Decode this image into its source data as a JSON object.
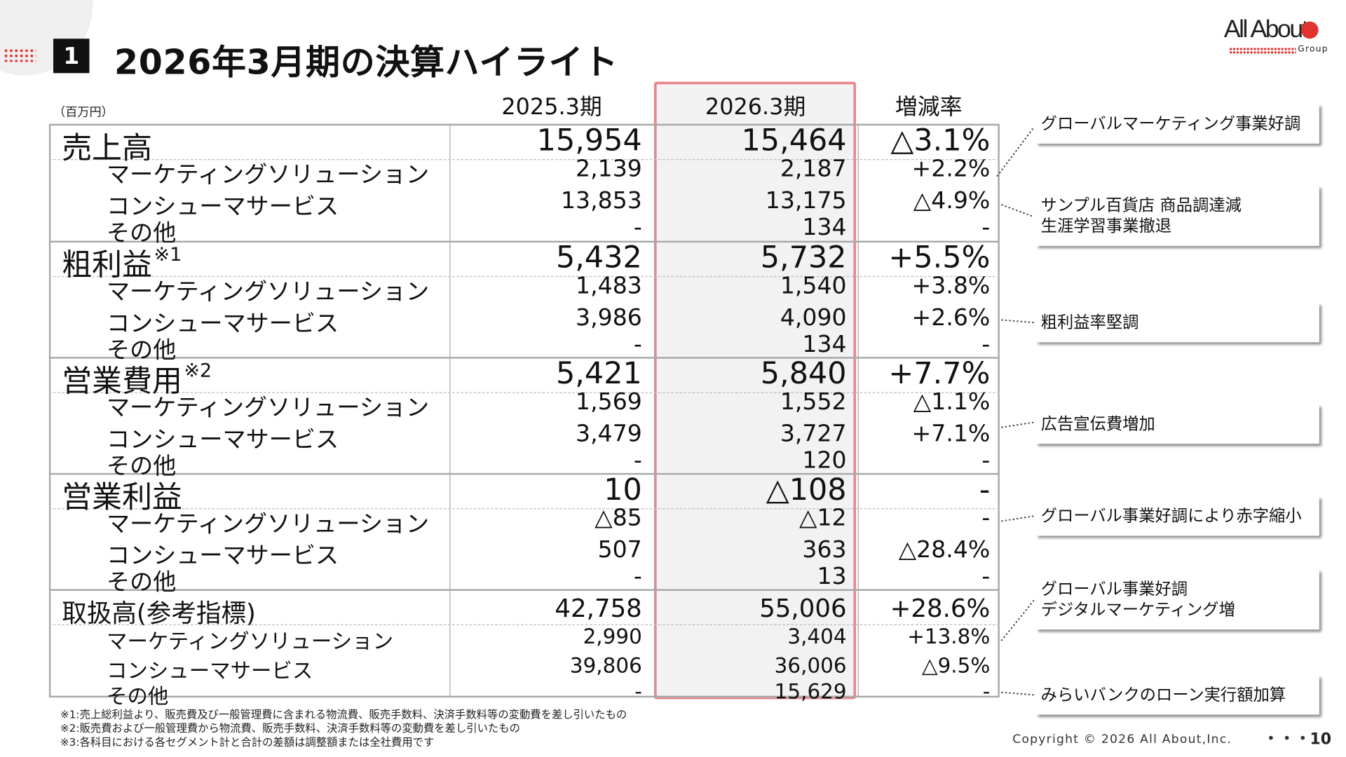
{
  "header": {
    "section_number": "1",
    "title": "2026年3月期の決算ハイライト",
    "logo_text": "All About",
    "logo_sub": "Group",
    "brand_color": "#e0352f"
  },
  "table": {
    "unit": "（百万円）",
    "columns": [
      "2025.3期",
      "2026.3期",
      "増減率"
    ],
    "highlight_color": "#e8868c",
    "groups": [
      {
        "label": "売上高",
        "note": "",
        "values": [
          "15,954",
          "15,464",
          "△3.1%"
        ],
        "rows": [
          {
            "label": "マーケティングソリューション",
            "values": [
              "2,139",
              "2,187",
              "+2.2%"
            ]
          },
          {
            "label": "コンシューマサービス",
            "values": [
              "13,853",
              "13,175",
              "△4.9%"
            ]
          },
          {
            "label": "その他",
            "values": [
              "-",
              "134",
              "-"
            ]
          }
        ]
      },
      {
        "label": "粗利益",
        "note": "※1",
        "values": [
          "5,432",
          "5,732",
          "+5.5%"
        ],
        "rows": [
          {
            "label": "マーケティングソリューション",
            "values": [
              "1,483",
              "1,540",
              "+3.8%"
            ]
          },
          {
            "label": "コンシューマサービス",
            "values": [
              "3,986",
              "4,090",
              "+2.6%"
            ]
          },
          {
            "label": "その他",
            "values": [
              "-",
              "134",
              "-"
            ]
          }
        ]
      },
      {
        "label": "営業費用",
        "note": "※2",
        "values": [
          "5,421",
          "5,840",
          "+7.7%"
        ],
        "rows": [
          {
            "label": "マーケティングソリューション",
            "values": [
              "1,569",
              "1,552",
              "△1.1%"
            ]
          },
          {
            "label": "コンシューマサービス",
            "values": [
              "3,479",
              "3,727",
              "+7.1%"
            ]
          },
          {
            "label": "その他",
            "values": [
              "-",
              "120",
              "-"
            ]
          }
        ]
      },
      {
        "label": "営業利益",
        "note": "",
        "values": [
          "10",
          "△108",
          "-"
        ],
        "rows": [
          {
            "label": "マーケティングソリューション",
            "values": [
              "△85",
              "△12",
              "-"
            ]
          },
          {
            "label": "コンシューマサービス",
            "values": [
              "507",
              "363",
              "△28.4%"
            ]
          },
          {
            "label": "その他",
            "values": [
              "-",
              "13",
              "-"
            ]
          }
        ]
      },
      {
        "label": "取扱高(参考指標)",
        "note": "",
        "values": [
          "42,758",
          "55,006",
          "+28.6%"
        ],
        "rows": [
          {
            "label": "マーケティングソリューション",
            "values": [
              "2,990",
              "3,404",
              "+13.8%"
            ]
          },
          {
            "label": "コンシューマサービス",
            "values": [
              "39,806",
              "36,006",
              "△9.5%"
            ]
          },
          {
            "label": "その他",
            "values": [
              "-",
              "15,629",
              "-"
            ]
          }
        ]
      }
    ]
  },
  "callouts": [
    [
      "グローバルマーケティング事業好調"
    ],
    [
      "サンプル百貨店 商品調達減",
      "生涯学習事業撤退"
    ],
    [
      "粗利益率堅調"
    ],
    [
      "広告宣伝費増加"
    ],
    [
      "グローバル事業好調により赤字縮小"
    ],
    [
      "グローバル事業好調",
      "デジタルマーケティング増"
    ],
    [
      "みらいバンクのローン実行額加算"
    ]
  ],
  "footnotes": [
    "※1:売上総利益より、販売費及び一般管理費に含まれる物流費、販売手数料、決済手数料等の変動費を差し引いたもの",
    "※2:販売費および一般管理費から物流費、販売手数料、決済手数料等の変動費を差し引いたもの",
    "※3:各科目における各セグメント計と合計の差額は調整額または全社費用です"
  ],
  "footer": {
    "copyright": "Copyright © 2026 All About,Inc.",
    "more": "• • •",
    "page": "10"
  }
}
